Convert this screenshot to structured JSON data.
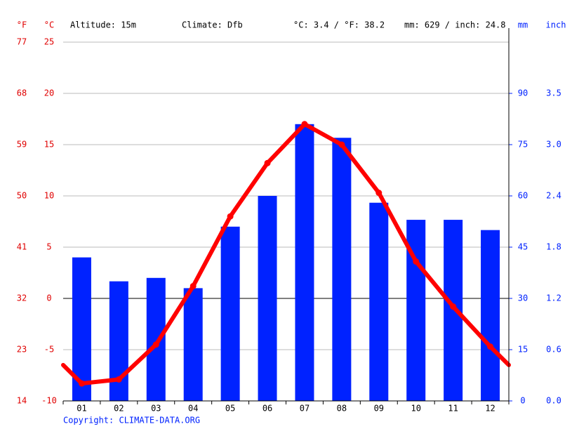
{
  "chart_data": {
    "type": "climate",
    "header": {
      "f_unit": "°F",
      "c_unit": "°C",
      "altitude": "Altitude: 15m",
      "climate": "Climate: Dfb",
      "temp_summary": "°C: 3.4 / °F: 38.2",
      "precip_summary": "mm: 629 / inch: 24.8",
      "mm_unit": "mm",
      "inch_unit": "inch"
    },
    "copyright": "Copyright: CLIMATE-DATA.ORG",
    "categories": [
      "01",
      "02",
      "03",
      "04",
      "05",
      "06",
      "07",
      "08",
      "09",
      "10",
      "11",
      "12"
    ],
    "series": [
      {
        "name": "Precipitation",
        "type": "bar",
        "axis": "y2",
        "color": "#0022ff",
        "values": [
          42,
          35,
          36,
          33,
          51,
          60,
          81,
          77,
          58,
          53,
          53,
          50
        ]
      },
      {
        "name": "Temperature",
        "type": "line",
        "color": "#ff0000",
        "values": [
          -8.3,
          -7.9,
          -4.5,
          1.2,
          8.0,
          13.2,
          17.0,
          15.0,
          10.3,
          3.6,
          -0.8,
          -4.7
        ]
      }
    ],
    "ylim": [
      -10,
      25
    ],
    "yticks": [
      -10,
      -5,
      0,
      5,
      10,
      15,
      20,
      25
    ],
    "yfticks": [
      {
        "value": -10,
        "label": "14"
      },
      {
        "value": -5,
        "label": "23"
      },
      {
        "value": 0,
        "label": "32"
      },
      {
        "value": 5,
        "label": "41"
      },
      {
        "value": 10,
        "label": "50"
      },
      {
        "value": 15,
        "label": "59"
      },
      {
        "value": 20,
        "label": "68"
      },
      {
        "value": 25,
        "label": "77"
      }
    ],
    "y2lim": [
      0,
      105
    ],
    "y2ticks": [
      0,
      15,
      30,
      45,
      60,
      75,
      90
    ],
    "y2inchticks": [
      {
        "value": 0,
        "label": "0.0"
      },
      {
        "value": 15,
        "label": "0.6"
      },
      {
        "value": 30,
        "label": "1.2"
      },
      {
        "value": 45,
        "label": "1.8"
      },
      {
        "value": 60,
        "label": "2.4"
      },
      {
        "value": 75,
        "label": "3.0"
      },
      {
        "value": 90,
        "label": "3.5"
      }
    ],
    "grid": true
  }
}
